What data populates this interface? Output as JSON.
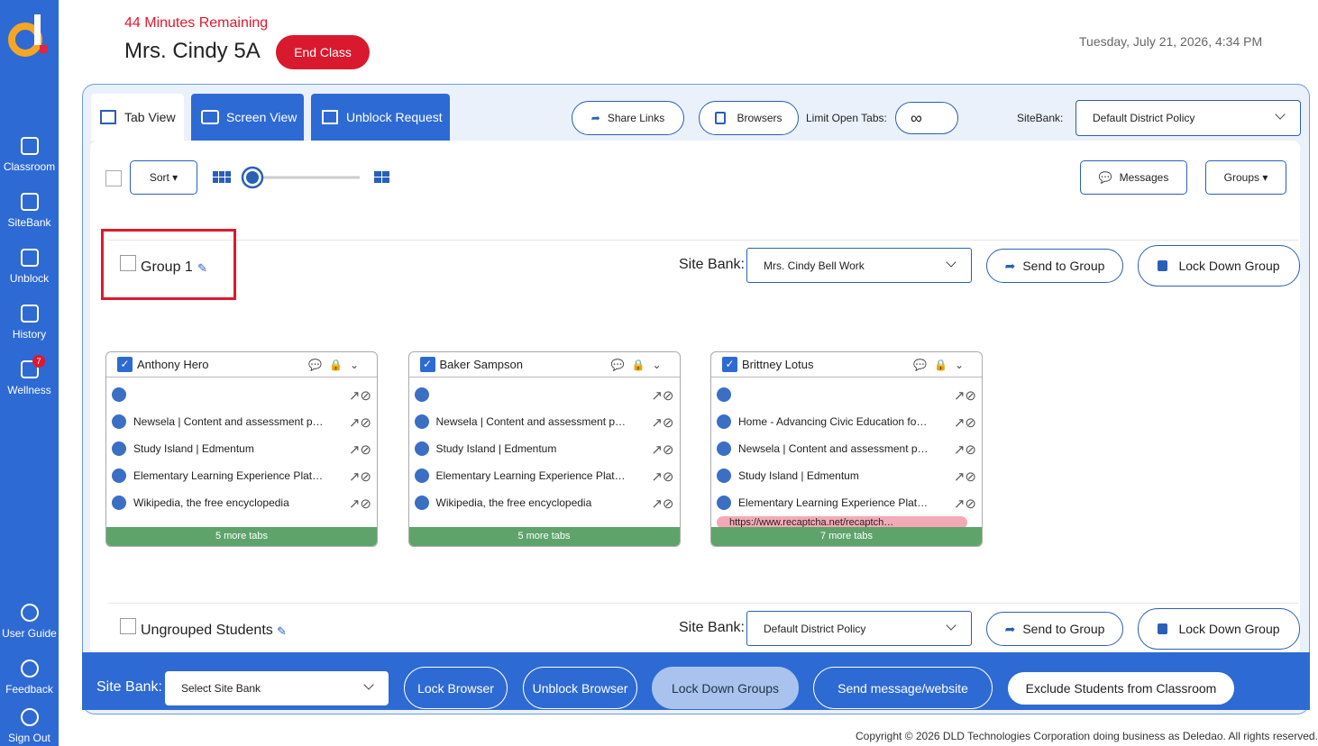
{
  "sidebar": {
    "items": [
      "Classroom",
      "SiteBank",
      "Unblock",
      "History",
      "Wellness",
      "User Guide",
      "Feedback",
      "Sign Out"
    ],
    "badge": 7
  },
  "header": {
    "remaining": "44 Minutes Remaining",
    "class_name": "Mrs. Cindy 5A",
    "end_button": "End Class",
    "datetime": "Tuesday, July 21, 2026, 4:34 PM"
  },
  "tabs": [
    "Tab View",
    "Screen View",
    "Unblock Request"
  ],
  "toolbar": {
    "share": "Share Links",
    "browsers": "Browsers",
    "limit_label": "Limit Open Tabs:",
    "limit_value": "∞",
    "sitebank_label": "SiteBank:",
    "sitebank_value": "Default District Policy"
  },
  "controls": {
    "sort": "Sort",
    "messages": "Messages",
    "groups": "Groups"
  },
  "groups": [
    {
      "name": "Group 1",
      "site_bank_label": "Site Bank:",
      "site_bank": "Mrs. Cindy Bell Work",
      "send": "Send to Group",
      "lock": "Lock Down Group",
      "students": [
        {
          "name": "Anthony Hero",
          "tabs": [
            "Newsela | Content and assessment p…",
            "Study Island | Edmentum",
            "Elementary Learning Experience Plat…",
            "Wikipedia, the free encyclopedia"
          ],
          "more": "5 more tabs"
        },
        {
          "name": "Baker Sampson",
          "tabs": [
            "Newsela | Content and assessment p…",
            "Study Island | Edmentum",
            "Elementary Learning Experience Plat…",
            "Wikipedia, the free encyclopedia"
          ],
          "more": "5 more tabs"
        },
        {
          "name": "Brittney Lotus",
          "tabs": [
            "Home - Advancing Civic Education fo…",
            "Newsela | Content and assessment p…",
            "Study Island | Edmentum",
            "Elementary Learning Experience Plat…"
          ],
          "alert": "https://www.recaptcha.net/recaptch…",
          "more": "7 more tabs"
        }
      ]
    },
    {
      "name": "Ungrouped Students",
      "site_bank_label": "Site Bank:",
      "site_bank": "Default District Policy",
      "send": "Send to Group",
      "lock": "Lock Down Group"
    }
  ],
  "bottom": {
    "site_bank_label": "Site Bank:",
    "site_bank": "Select Site Bank",
    "buttons": [
      "Lock Browser",
      "Unblock Browser",
      "Lock Down Groups",
      "Send message/website",
      "Exclude Students from Classroom"
    ]
  },
  "footer": "Copyright © 2026 DLD Technologies Corporation doing business as Deledao. All rights reserved."
}
